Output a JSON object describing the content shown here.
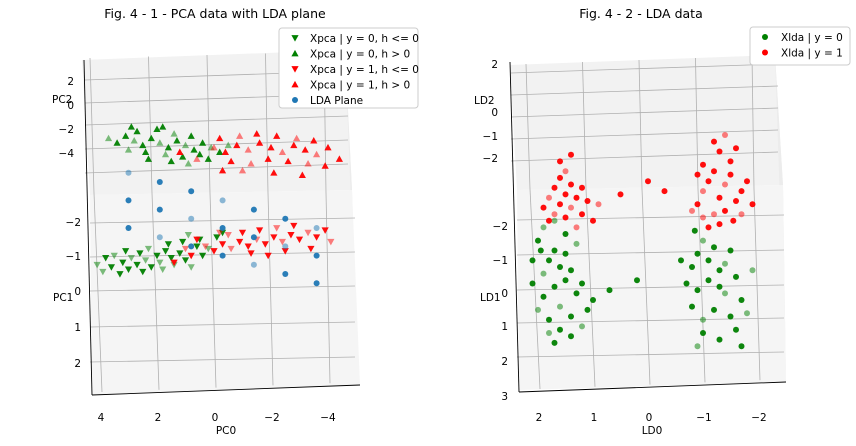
{
  "chart_data": [
    {
      "type": "scatter",
      "title": "Fig. 4 - 1 - PCA data with LDA plane",
      "xlabel": "PC0",
      "ylabel": "PC2",
      "zlabel": "PC1",
      "x_ticks": [
        "4",
        "2",
        "0",
        "−2",
        "−4"
      ],
      "y_ticks": [
        "2",
        "0",
        "−2",
        "−4"
      ],
      "z_ticks": [
        "−2",
        "−1",
        "0",
        "1",
        "2"
      ],
      "legend_position": "top-right",
      "series": [
        {
          "name": "Xpca | y = 0, h <= 0",
          "marker": "triangle-down",
          "color": "#008000",
          "points": [
            [
              4.1,
              -1.6
            ],
            [
              3.8,
              -1.3
            ],
            [
              3.6,
              -1.7
            ],
            [
              3.5,
              -1.2
            ],
            [
              3.2,
              -1.5
            ],
            [
              3.0,
              -1.8
            ],
            [
              2.9,
              -1.3
            ],
            [
              2.7,
              -1.6
            ],
            [
              2.6,
              -1.1
            ],
            [
              2.4,
              -1.4
            ],
            [
              2.2,
              -1.7
            ],
            [
              2.0,
              -1.2
            ],
            [
              1.9,
              -1.5
            ],
            [
              1.7,
              -1.0
            ],
            [
              1.5,
              -1.3
            ],
            [
              1.4,
              -1.6
            ],
            [
              1.2,
              -1.1
            ],
            [
              1.0,
              -1.4
            ],
            [
              0.8,
              -1.7
            ],
            [
              0.6,
              -0.8
            ],
            [
              0.4,
              -1.2
            ],
            [
              3.9,
              -1.9
            ],
            [
              3.3,
              -2.0
            ],
            [
              2.5,
              -1.9
            ],
            [
              1.8,
              -1.8
            ],
            [
              1.1,
              -0.6
            ],
            [
              0.5,
              -0.5
            ],
            [
              0.2,
              -0.9
            ],
            [
              -0.1,
              -0.4
            ],
            [
              -0.3,
              -0.2
            ],
            [
              2.3,
              -0.9
            ],
            [
              3.1,
              -1.0
            ],
            [
              1.6,
              -0.7
            ],
            [
              0.9,
              -0.3
            ]
          ]
        },
        {
          "name": "Xpca | y = 0, h > 0",
          "marker": "triangle-up",
          "color": "#008000",
          "points": [
            [
              3.7,
              3.9
            ],
            [
              3.4,
              3.7
            ],
            [
              3.1,
              4.0
            ],
            [
              2.8,
              3.8
            ],
            [
              2.5,
              3.6
            ],
            [
              2.2,
              3.9
            ],
            [
              1.9,
              3.7
            ],
            [
              1.6,
              3.5
            ],
            [
              1.3,
              3.8
            ],
            [
              1.0,
              3.6
            ],
            [
              0.7,
              3.4
            ],
            [
              0.4,
              3.7
            ],
            [
              0.1,
              3.5
            ],
            [
              2.7,
              4.2
            ],
            [
              2.0,
              4.3
            ],
            [
              1.4,
              4.1
            ],
            [
              0.8,
              4.0
            ],
            [
              2.4,
              3.3
            ],
            [
              1.7,
              3.2
            ],
            [
              1.1,
              3.1
            ],
            [
              0.5,
              3.2
            ],
            [
              3.0,
              3.4
            ],
            [
              2.3,
              3.0
            ],
            [
              1.5,
              2.9
            ],
            [
              0.9,
              2.8
            ],
            [
              0.2,
              3.0
            ],
            [
              -0.2,
              3.3
            ],
            [
              -0.5,
              3.6
            ],
            [
              1.8,
              4.4
            ],
            [
              2.9,
              4.4
            ]
          ]
        },
        {
          "name": "Xpca | y = 1, h <= 0",
          "marker": "triangle-down",
          "color": "#ff0000",
          "points": [
            [
              0.3,
              -0.8
            ],
            [
              0.0,
              -1.0
            ],
            [
              -0.3,
              -0.7
            ],
            [
              -0.6,
              -0.9
            ],
            [
              -0.9,
              -0.6
            ],
            [
              -1.2,
              -0.8
            ],
            [
              -1.5,
              -0.5
            ],
            [
              -1.8,
              -0.7
            ],
            [
              -2.1,
              -0.4
            ],
            [
              -2.4,
              -0.6
            ],
            [
              -2.7,
              -0.3
            ],
            [
              -3.0,
              -0.5
            ],
            [
              -3.3,
              -0.2
            ],
            [
              -3.6,
              -0.4
            ],
            [
              -3.9,
              -0.1
            ],
            [
              -0.5,
              -0.3
            ],
            [
              -1.0,
              -0.2
            ],
            [
              -1.6,
              -0.1
            ],
            [
              -2.2,
              0.0
            ],
            [
              -2.8,
              0.1
            ],
            [
              0.6,
              -0.5
            ],
            [
              -0.2,
              -0.2
            ],
            [
              -1.3,
              -1.1
            ],
            [
              -2.5,
              -1.0
            ],
            [
              1.0,
              -0.9
            ],
            [
              1.4,
              -1.5
            ],
            [
              -3.4,
              -0.9
            ],
            [
              -4.1,
              -0.6
            ],
            [
              0.8,
              -1.2
            ],
            [
              -1.9,
              -1.2
            ]
          ]
        },
        {
          "name": "Xpca | y = 1, h > 0",
          "marker": "triangle-up",
          "color": "#ff0000",
          "points": [
            [
              0.0,
              3.5
            ],
            [
              -0.4,
              3.3
            ],
            [
              -0.8,
              3.6
            ],
            [
              -1.2,
              3.4
            ],
            [
              -1.6,
              3.7
            ],
            [
              -2.0,
              3.5
            ],
            [
              -2.4,
              3.3
            ],
            [
              -2.8,
              3.6
            ],
            [
              -3.2,
              3.4
            ],
            [
              -3.6,
              3.2
            ],
            [
              -4.0,
              3.5
            ],
            [
              -0.2,
              3.9
            ],
            [
              -0.9,
              4.0
            ],
            [
              -1.5,
              4.1
            ],
            [
              -2.2,
              4.0
            ],
            [
              -2.9,
              3.9
            ],
            [
              -3.5,
              3.8
            ],
            [
              -0.6,
              2.9
            ],
            [
              -1.3,
              2.8
            ],
            [
              -1.9,
              3.0
            ],
            [
              -2.6,
              2.9
            ],
            [
              -3.3,
              2.8
            ],
            [
              -3.9,
              2.7
            ],
            [
              -4.4,
              3.0
            ],
            [
              -1.0,
              2.5
            ],
            [
              -2.1,
              2.4
            ],
            [
              -3.1,
              2.3
            ],
            [
              0.6,
              3.0
            ],
            [
              1.2,
              3.3
            ],
            [
              -0.3,
              2.5
            ]
          ]
        },
        {
          "name": "LDA Plane",
          "marker": "circle",
          "color": "#1f77b4",
          "points": [
            [
              3.0,
              2.4
            ],
            [
              1.9,
              2.0
            ],
            [
              0.8,
              1.6
            ],
            [
              -0.3,
              1.2
            ],
            [
              -1.4,
              0.8
            ],
            [
              -2.5,
              0.4
            ],
            [
              -3.6,
              0.0
            ],
            [
              3.0,
              1.2
            ],
            [
              1.9,
              0.8
            ],
            [
              0.8,
              0.4
            ],
            [
              -0.3,
              0.0
            ],
            [
              -1.4,
              -0.4
            ],
            [
              -2.5,
              -0.8
            ],
            [
              -3.6,
              -1.2
            ],
            [
              3.0,
              0.0
            ],
            [
              1.9,
              -0.4
            ],
            [
              0.8,
              -0.8
            ],
            [
              -0.3,
              -1.2
            ],
            [
              -1.4,
              -1.6
            ],
            [
              -2.5,
              -2.0
            ],
            [
              -3.6,
              -2.4
            ]
          ]
        }
      ]
    },
    {
      "type": "scatter",
      "title": "Fig. 4 - 2 - LDA data",
      "xlabel": "LD0",
      "ylabel": "LD2",
      "zlabel": "LD1",
      "x_ticks": [
        "2",
        "1",
        "0",
        "−1",
        "−2"
      ],
      "y_ticks": [
        "2",
        "0",
        "−1",
        "−2"
      ],
      "z_ticks": [
        "−2",
        "−1",
        "0",
        "1",
        "2",
        "3"
      ],
      "legend_position": "top-right",
      "series": [
        {
          "name": "Xlda | y = 0",
          "marker": "circle",
          "color": "#008000",
          "points": [
            [
              2.0,
              -0.3
            ],
            [
              1.9,
              0.1
            ],
            [
              1.8,
              -0.6
            ],
            [
              1.7,
              0.4
            ],
            [
              1.6,
              -0.2
            ],
            [
              1.5,
              0.6
            ],
            [
              1.4,
              -0.5
            ],
            [
              1.3,
              0.2
            ],
            [
              1.9,
              0.8
            ],
            [
              1.8,
              1.2
            ],
            [
              1.7,
              1.5
            ],
            [
              2.0,
              1.8
            ],
            [
              1.9,
              2.2
            ],
            [
              1.6,
              1.0
            ],
            [
              1.5,
              1.4
            ],
            [
              1.4,
              0.9
            ],
            [
              1.3,
              1.7
            ],
            [
              1.2,
              0.5
            ],
            [
              2.1,
              0.5
            ],
            [
              2.1,
              1.2
            ],
            [
              1.8,
              -1.0
            ],
            [
              1.7,
              -1.3
            ],
            [
              1.6,
              -0.9
            ],
            [
              1.4,
              -1.1
            ],
            [
              1.2,
              -0.8
            ],
            [
              1.1,
              -0.3
            ],
            [
              1.0,
              0.0
            ],
            [
              1.5,
              2.0
            ],
            [
              1.7,
              2.4
            ],
            [
              1.95,
              1.5
            ],
            [
              -0.8,
              -0.2
            ],
            [
              -0.9,
              0.3
            ],
            [
              -1.0,
              -0.6
            ],
            [
              -1.1,
              0.6
            ],
            [
              -1.2,
              -0.3
            ],
            [
              -1.3,
              0.9
            ],
            [
              -1.4,
              0.2
            ],
            [
              -1.5,
              -0.5
            ],
            [
              -0.8,
              1.0
            ],
            [
              -0.9,
              1.4
            ],
            [
              -1.0,
              1.8
            ],
            [
              -1.1,
              1.2
            ],
            [
              -1.2,
              1.6
            ],
            [
              -1.3,
              0.4
            ],
            [
              -1.4,
              1.1
            ],
            [
              -1.5,
              1.5
            ],
            [
              -1.6,
              0.7
            ],
            [
              -1.7,
              0.0
            ],
            [
              -1.8,
              -0.4
            ],
            [
              -1.6,
              -0.9
            ],
            [
              -1.3,
              -1.2
            ],
            [
              -1.0,
              -1.0
            ],
            [
              -0.9,
              -1.4
            ],
            [
              -1.7,
              -1.4
            ],
            [
              -0.7,
              0.5
            ],
            [
              -0.6,
              1.2
            ],
            [
              -1.9,
              0.9
            ],
            [
              0.2,
              0.6
            ],
            [
              0.7,
              0.3
            ],
            [
              -0.85,
              2.1
            ]
          ]
        },
        {
          "name": "Xlda | y = 1",
          "marker": "circle",
          "color": "#ff0000",
          "points": [
            [
              1.7,
              2.6
            ],
            [
              1.6,
              2.9
            ],
            [
              1.5,
              3.2
            ],
            [
              1.4,
              3.5
            ],
            [
              1.8,
              3.1
            ],
            [
              1.7,
              3.4
            ],
            [
              1.6,
              3.7
            ],
            [
              1.5,
              2.5
            ],
            [
              1.4,
              2.8
            ],
            [
              1.3,
              3.1
            ],
            [
              1.2,
              3.4
            ],
            [
              1.9,
              2.8
            ],
            [
              1.3,
              2.2
            ],
            [
              1.2,
              2.6
            ],
            [
              1.1,
              3.0
            ],
            [
              1.0,
              2.4
            ],
            [
              1.5,
              3.9
            ],
            [
              1.6,
              4.2
            ],
            [
              1.4,
              4.4
            ],
            [
              1.8,
              2.4
            ],
            [
              0.9,
              2.9
            ],
            [
              0.5,
              3.2
            ],
            [
              -0.3,
              3.3
            ],
            [
              -0.9,
              2.9
            ],
            [
              -1.0,
              3.3
            ],
            [
              -1.1,
              3.6
            ],
            [
              -1.2,
              3.9
            ],
            [
              -1.3,
              3.1
            ],
            [
              -1.4,
              3.5
            ],
            [
              -1.5,
              3.8
            ],
            [
              -1.6,
              3.0
            ],
            [
              -1.7,
              3.3
            ],
            [
              -1.2,
              2.6
            ],
            [
              -1.3,
              2.3
            ],
            [
              -1.4,
              2.7
            ],
            [
              -1.1,
              2.2
            ],
            [
              -1.0,
              2.5
            ],
            [
              -1.5,
              4.2
            ],
            [
              -1.3,
              4.5
            ],
            [
              -1.2,
              4.8
            ],
            [
              -1.4,
              5.0
            ],
            [
              -1.6,
              4.6
            ],
            [
              -1.8,
              3.6
            ],
            [
              -1.9,
              2.9
            ],
            [
              -0.8,
              2.7
            ],
            [
              -0.9,
              3.8
            ],
            [
              -1.0,
              4.1
            ],
            [
              -1.55,
              2.4
            ],
            [
              -1.7,
              2.6
            ],
            [
              0.0,
              3.6
            ]
          ]
        }
      ]
    }
  ]
}
